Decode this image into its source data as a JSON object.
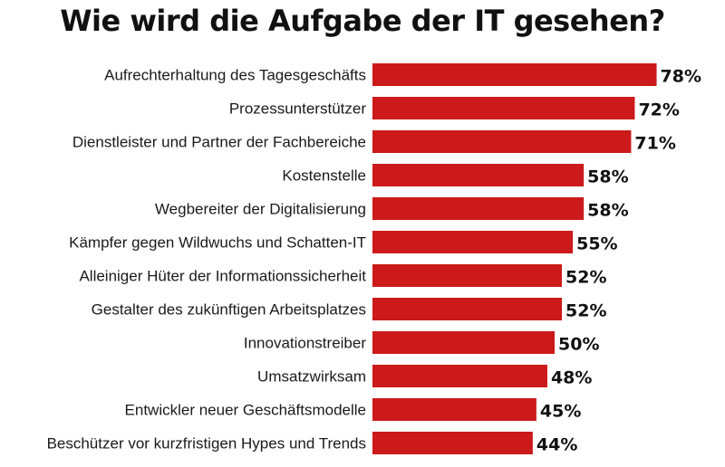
{
  "chart_data": {
    "type": "bar",
    "orientation": "horizontal",
    "title": "Wie wird die Aufgabe der IT gesehen?",
    "xlabel": "",
    "ylabel": "",
    "unit": "%",
    "xlim": [
      0,
      100
    ],
    "grid": false,
    "bar_color": "#cc1a1a",
    "categories": [
      "Aufrechterhaltung des Tagesgeschäfts",
      "Prozessunterstützer",
      "Dienstleister und Partner der Fachbereiche",
      "Kostenstelle",
      "Wegbereiter der Digitalisierung",
      "Kämpfer gegen Wildwuchs und Schatten-IT",
      "Alleiniger Hüter der Informationssicherheit",
      "Gestalter des zukünftigen Arbeitsplatzes",
      "Innovationstreiber",
      "Umsatzwirksam",
      "Entwickler neuer Geschäftsmodelle",
      "Beschützer vor kurzfristigen Hypes und Trends"
    ],
    "values": [
      78,
      72,
      71,
      58,
      58,
      55,
      52,
      52,
      50,
      48,
      45,
      44
    ],
    "value_labels": [
      "78%",
      "72%",
      "71%",
      "58%",
      "58%",
      "55%",
      "52%",
      "52%",
      "50%",
      "48%",
      "45%",
      "44%"
    ]
  }
}
